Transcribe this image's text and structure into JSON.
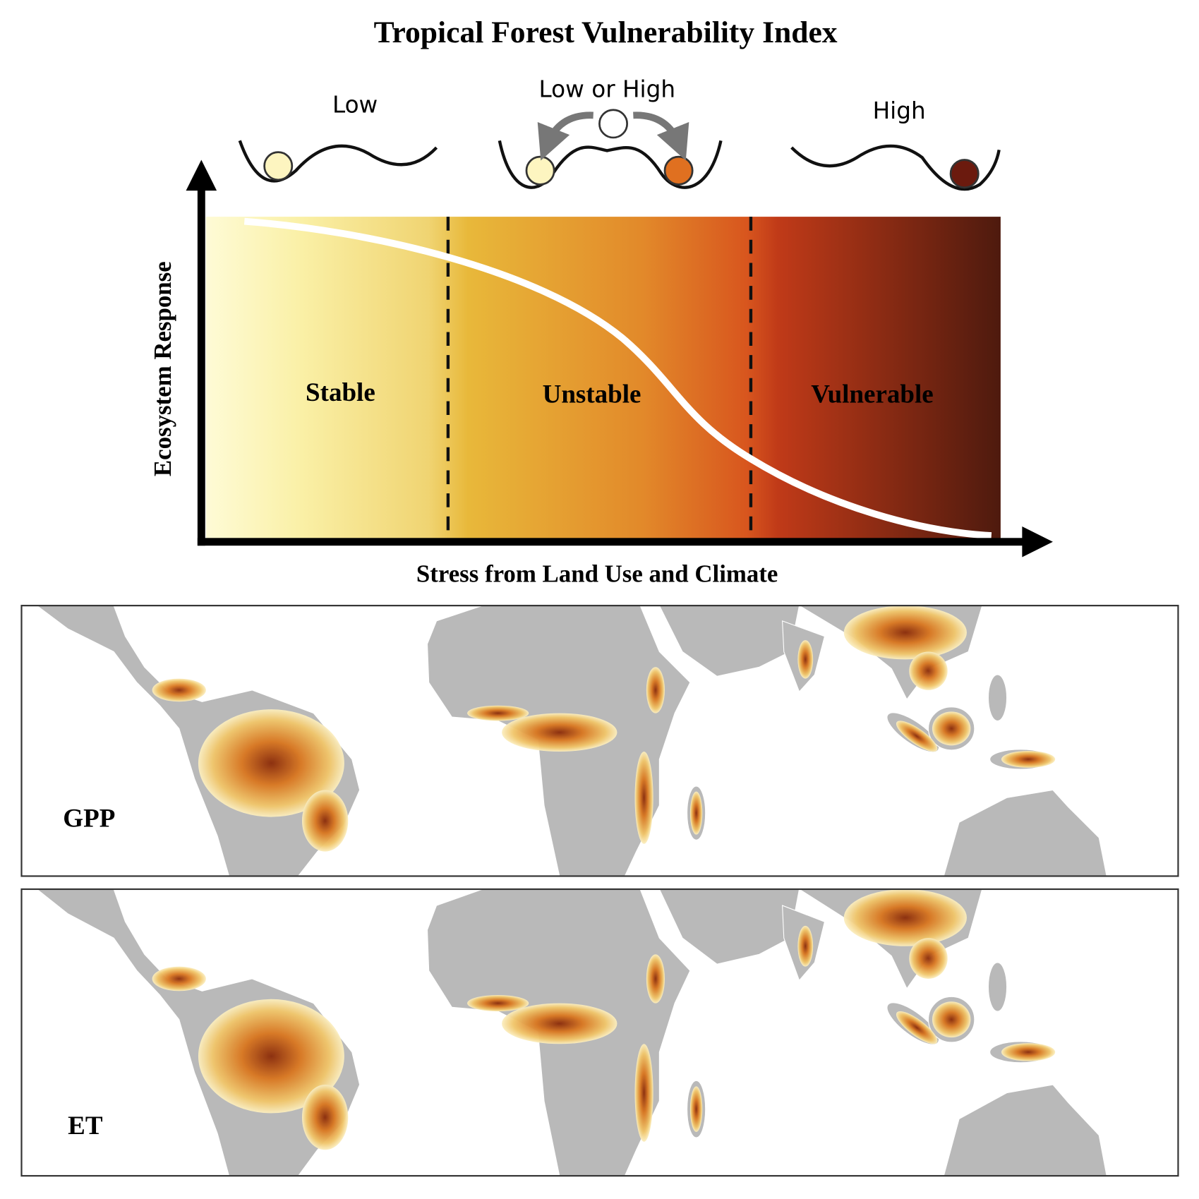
{
  "title": "Tropical Forest Vulnerability Index",
  "states": [
    {
      "label": "Low"
    },
    {
      "label": "Low or High"
    },
    {
      "label": "High"
    }
  ],
  "zones": [
    {
      "label": "Stable"
    },
    {
      "label": "Unstable"
    },
    {
      "label": "Vulnerable"
    }
  ],
  "axes": {
    "y_label": "Ecosystem Response",
    "x_label": "Stress from Land Use and Climate"
  },
  "maps": [
    {
      "label": "GPP"
    },
    {
      "label": "ET"
    }
  ]
}
